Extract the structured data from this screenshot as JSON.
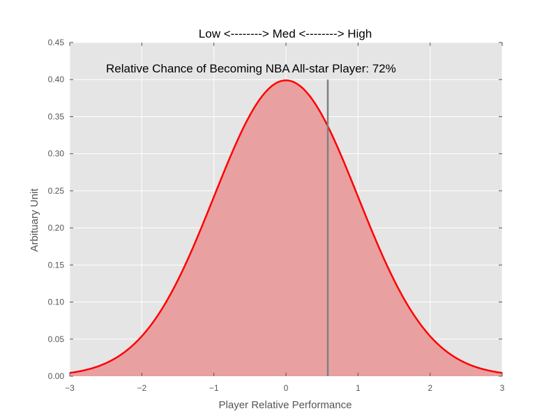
{
  "chart_data": {
    "type": "area",
    "title": "Low <--------> Med <--------> High",
    "xlabel": "Player Relative Performance",
    "ylabel": "Arbituary Unit",
    "xlim": [
      -3,
      3
    ],
    "ylim": [
      0,
      0.45
    ],
    "x_ticks": [
      -3,
      -2,
      -1,
      0,
      1,
      2,
      3
    ],
    "x_tick_labels": [
      "−3",
      "−2",
      "−1",
      "0",
      "1",
      "2",
      "3"
    ],
    "y_ticks": [
      0.0,
      0.05,
      0.1,
      0.15,
      0.2,
      0.25,
      0.3,
      0.35,
      0.4,
      0.45
    ],
    "y_tick_labels": [
      "0.00",
      "0.05",
      "0.10",
      "0.15",
      "0.20",
      "0.25",
      "0.30",
      "0.35",
      "0.40",
      "0.45"
    ],
    "grid": true,
    "distribution": "standard normal pdf",
    "series": [
      {
        "x": [
          -3.0,
          -2.8,
          -2.6,
          -2.4,
          -2.2,
          -2.0,
          -1.8,
          -1.6,
          -1.4,
          -1.2,
          -1.0,
          -0.8,
          -0.6,
          -0.4,
          -0.2,
          0.0,
          0.2,
          0.4,
          0.6,
          0.8,
          1.0,
          1.2,
          1.4,
          1.6,
          1.8,
          2.0,
          2.2,
          2.4,
          2.6,
          2.8,
          3.0
        ],
        "y": [
          0.0044,
          0.0079,
          0.0136,
          0.0224,
          0.0355,
          0.054,
          0.079,
          0.1109,
          0.1497,
          0.1942,
          0.242,
          0.2897,
          0.3332,
          0.3683,
          0.391,
          0.3989,
          0.391,
          0.3683,
          0.3332,
          0.2897,
          0.242,
          0.1942,
          0.1497,
          0.1109,
          0.079,
          0.054,
          0.0355,
          0.0224,
          0.0136,
          0.0079,
          0.0044
        ]
      }
    ],
    "marker": {
      "x": 0.58,
      "y_top": 0.4
    },
    "annotation": {
      "text": "Relative Chance of Becoming NBA All-star Player: 72%"
    },
    "colors": {
      "curve": "#ff0000",
      "fill": "#e8a0a0",
      "marker": "#808080",
      "background": "#e5e5e5",
      "grid": "#ffffff"
    }
  }
}
